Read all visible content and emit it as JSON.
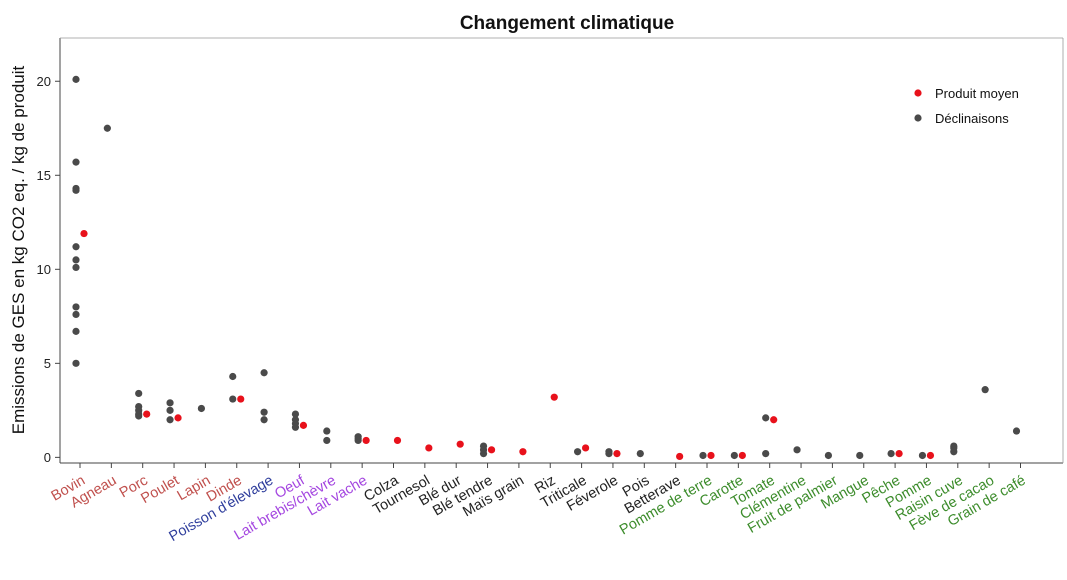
{
  "chart_data": {
    "type": "scatter",
    "title": "Changement climatique",
    "xlabel": "",
    "ylabel": "Emissions de GES en kg CO2 eq. / kg de produit",
    "ylim": [
      -0.3,
      22.3
    ],
    "yticks": [
      0,
      5,
      10,
      15,
      20
    ],
    "grid": false,
    "legend_position": "top-right",
    "legend": [
      {
        "label": "Produit moyen",
        "color": "#e8111b"
      },
      {
        "label": "Déclinaisons",
        "color": "#4a4a4a"
      }
    ],
    "categories": [
      {
        "label": "Bovin",
        "color": "#c0504d",
        "variants": [
          20.1,
          15.7,
          14.3,
          14.2,
          11.2,
          10.5,
          10.1,
          8.0,
          7.6,
          6.7,
          5.0
        ],
        "average": 11.9
      },
      {
        "label": "Agneau",
        "color": "#c0504d",
        "variants": [
          17.5
        ],
        "average": null
      },
      {
        "label": "Porc",
        "color": "#c0504d",
        "variants": [
          3.4,
          2.7,
          2.5,
          2.3,
          2.2
        ],
        "average": 2.3
      },
      {
        "label": "Poulet",
        "color": "#c0504d",
        "variants": [
          2.9,
          2.5,
          2.0
        ],
        "average": 2.1
      },
      {
        "label": "Lapin",
        "color": "#c0504d",
        "variants": [
          2.6
        ],
        "average": null
      },
      {
        "label": "Dinde",
        "color": "#c0504d",
        "variants": [
          4.3,
          3.1
        ],
        "average": 3.1
      },
      {
        "label": "Poisson d'élevage",
        "color": "#2e3d9c",
        "variants": [
          4.5,
          2.4,
          2.0
        ],
        "average": null
      },
      {
        "label": "Oeuf",
        "color": "#a446e0",
        "variants": [
          2.3,
          2.0,
          1.8,
          1.6
        ],
        "average": 1.7
      },
      {
        "label": "Lait brebis/chèvre",
        "color": "#a446e0",
        "variants": [
          1.4,
          0.9
        ],
        "average": null
      },
      {
        "label": "Lait vache",
        "color": "#a446e0",
        "variants": [
          1.1,
          1.0,
          0.9
        ],
        "average": 0.9
      },
      {
        "label": "Colza",
        "color": "#222222",
        "variants": [],
        "average": 0.9
      },
      {
        "label": "Tournesol",
        "color": "#222222",
        "variants": [],
        "average": 0.5
      },
      {
        "label": "Blé dur",
        "color": "#222222",
        "variants": [],
        "average": 0.7
      },
      {
        "label": "Blé tendre",
        "color": "#222222",
        "variants": [
          0.6,
          0.4,
          0.2
        ],
        "average": 0.4
      },
      {
        "label": "Maïs grain",
        "color": "#222222",
        "variants": [],
        "average": 0.3
      },
      {
        "label": "Riz",
        "color": "#222222",
        "variants": [],
        "average": 3.2
      },
      {
        "label": "Triticale",
        "color": "#222222",
        "variants": [
          0.3
        ],
        "average": 0.5
      },
      {
        "label": "Féverole",
        "color": "#222222",
        "variants": [
          0.3,
          0.2
        ],
        "average": 0.2
      },
      {
        "label": "Pois",
        "color": "#222222",
        "variants": [
          0.2
        ],
        "average": null
      },
      {
        "label": "Betterave",
        "color": "#222222",
        "variants": [],
        "average": 0.05
      },
      {
        "label": "Pomme de terre",
        "color": "#3c8c2b",
        "variants": [
          0.1
        ],
        "average": 0.1
      },
      {
        "label": "Carotte",
        "color": "#3c8c2b",
        "variants": [
          0.1
        ],
        "average": 0.1
      },
      {
        "label": "Tomate",
        "color": "#3c8c2b",
        "variants": [
          2.1,
          0.2
        ],
        "average": 2.0
      },
      {
        "label": "Clémentine",
        "color": "#3c8c2b",
        "variants": [
          0.4
        ],
        "average": null
      },
      {
        "label": "Fruit de palmier",
        "color": "#3c8c2b",
        "variants": [
          0.1
        ],
        "average": null
      },
      {
        "label": "Mangue",
        "color": "#3c8c2b",
        "variants": [
          0.1
        ],
        "average": null
      },
      {
        "label": "Pêche",
        "color": "#3c8c2b",
        "variants": [
          0.2
        ],
        "average": 0.2
      },
      {
        "label": "Pomme",
        "color": "#3c8c2b",
        "variants": [
          0.1
        ],
        "average": 0.1
      },
      {
        "label": "Raisin cuve",
        "color": "#3c8c2b",
        "variants": [
          0.6,
          0.5,
          0.3
        ],
        "average": null
      },
      {
        "label": "Fève de cacao",
        "color": "#3c8c2b",
        "variants": [
          3.6
        ],
        "average": null
      },
      {
        "label": "Grain de café",
        "color": "#3c8c2b",
        "variants": [
          1.4
        ],
        "average": null
      }
    ]
  }
}
